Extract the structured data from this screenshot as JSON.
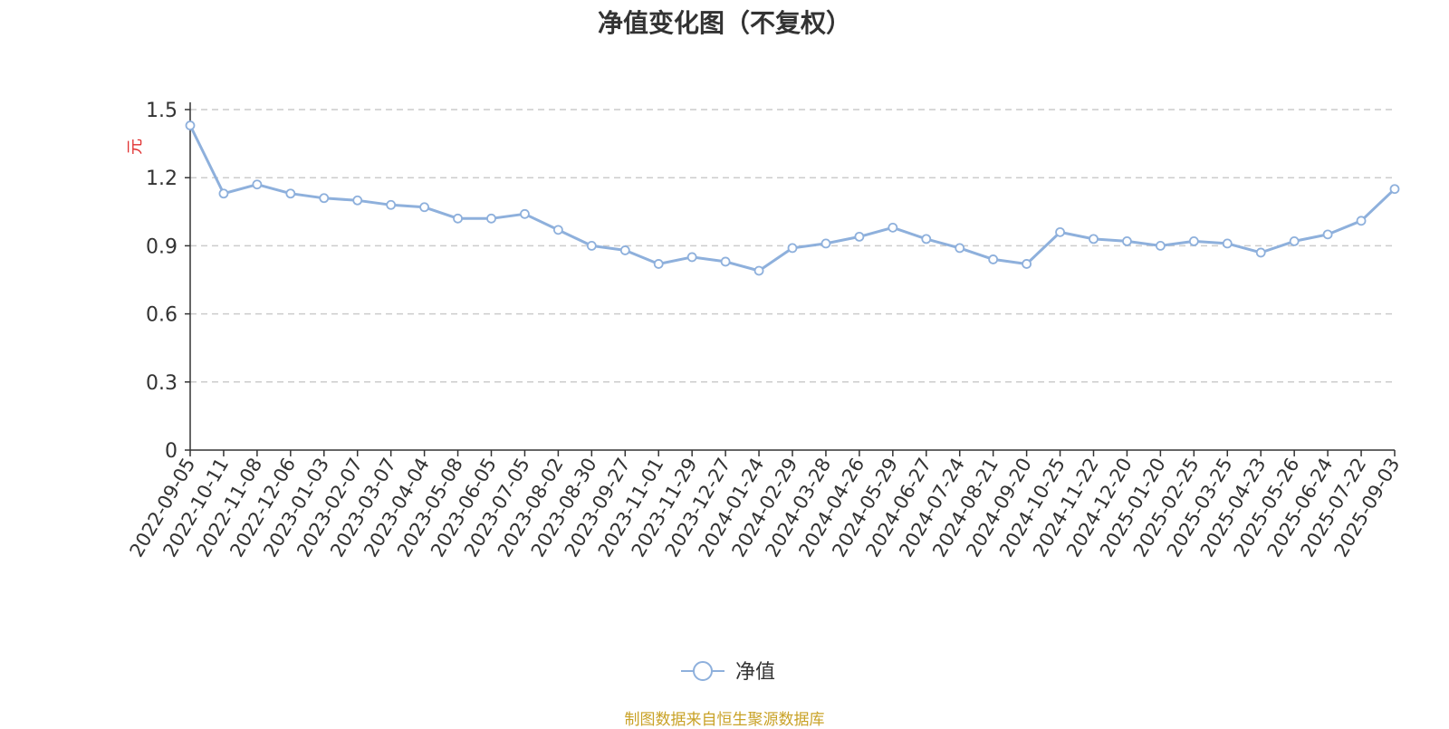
{
  "chart_data": {
    "type": "line",
    "title": "净值变化图（不复权）",
    "ylabel": "元",
    "xlabel": "",
    "ylim": [
      0,
      1.5
    ],
    "yticks": [
      "0",
      "0.3",
      "0.6",
      "0.9",
      "1.2",
      "1.5"
    ],
    "ytick_values": [
      0,
      0.3,
      0.6,
      0.9,
      1.2,
      1.5
    ],
    "grid": true,
    "legend_position": "bottom-center",
    "categories": [
      "2022-09-05",
      "2022-10-11",
      "2022-11-08",
      "2022-12-06",
      "2023-01-03",
      "2023-02-07",
      "2023-03-07",
      "2023-04-04",
      "2023-05-08",
      "2023-06-05",
      "2023-07-05",
      "2023-08-02",
      "2023-08-30",
      "2023-09-27",
      "2023-11-01",
      "2023-11-29",
      "2023-12-27",
      "2024-01-24",
      "2024-02-29",
      "2024-03-28",
      "2024-04-26",
      "2024-05-29",
      "2024-06-27",
      "2024-07-24",
      "2024-08-21",
      "2024-09-20",
      "2024-10-25",
      "2024-11-22",
      "2024-12-20",
      "2025-01-20",
      "2025-02-25",
      "2025-03-25",
      "2025-04-23",
      "2025-05-26",
      "2025-06-24",
      "2025-07-22",
      "2025-09-03"
    ],
    "series": [
      {
        "name": "净值",
        "color": "#8eb0dc",
        "values": [
          1.43,
          1.13,
          1.17,
          1.13,
          1.11,
          1.1,
          1.08,
          1.07,
          1.02,
          1.02,
          1.04,
          0.97,
          0.9,
          0.88,
          0.82,
          0.85,
          0.83,
          0.79,
          0.89,
          0.91,
          0.94,
          0.98,
          0.93,
          0.89,
          0.84,
          0.82,
          0.96,
          0.93,
          0.92,
          0.9,
          0.92,
          0.91,
          0.87,
          0.92,
          0.95,
          1.01,
          1.15
        ]
      }
    ]
  },
  "source_note": "制图数据来自恒生聚源数据库",
  "colors": {
    "line": "#8eb0dc",
    "axis": "#333333",
    "grid": "#cccccc",
    "ylabel": "#e03030",
    "note": "#c9a227"
  }
}
